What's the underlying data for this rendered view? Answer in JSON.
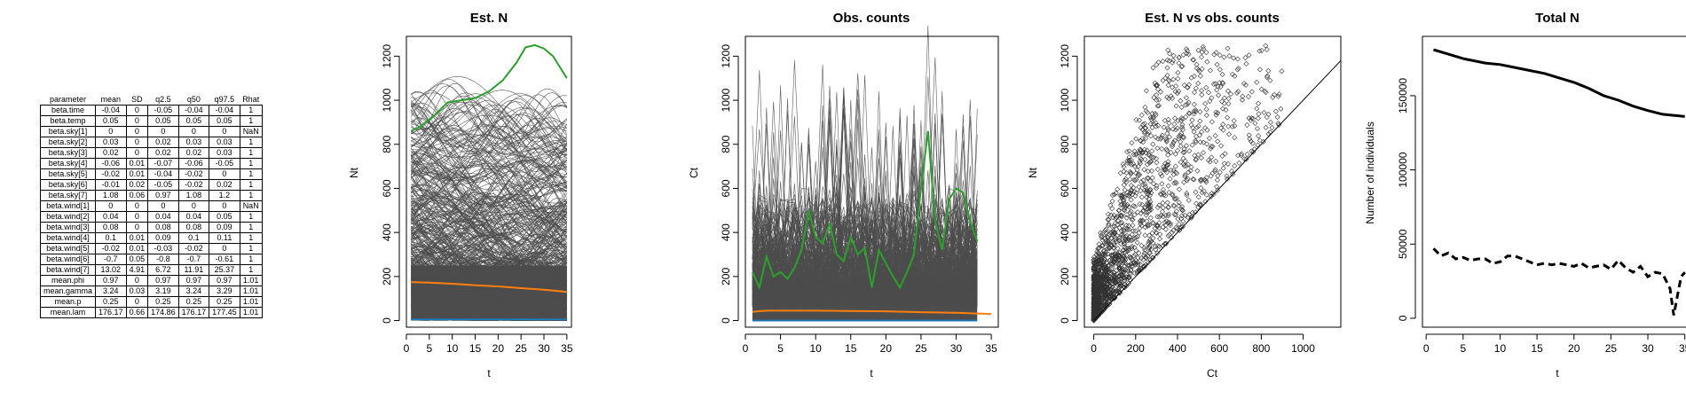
{
  "summary_table": {
    "columns": [
      "parameter",
      "mean",
      "SD",
      "q2.5",
      "q50",
      "q97.5",
      "Rhat"
    ],
    "rows": [
      [
        "beta.time",
        "-0.04",
        "0",
        "-0.05",
        "-0.04",
        "-0.04",
        "1"
      ],
      [
        "beta.temp",
        "0.05",
        "0",
        "0.05",
        "0.05",
        "0.05",
        "1"
      ],
      [
        "beta.sky[1]",
        "0",
        "0",
        "0",
        "0",
        "0",
        "NaN"
      ],
      [
        "beta.sky[2]",
        "0.03",
        "0",
        "0.02",
        "0.03",
        "0.03",
        "1"
      ],
      [
        "beta.sky[3]",
        "0.02",
        "0",
        "0.02",
        "0.02",
        "0.03",
        "1"
      ],
      [
        "beta.sky[4]",
        "-0.06",
        "0.01",
        "-0.07",
        "-0.06",
        "-0.05",
        "1"
      ],
      [
        "beta.sky[5]",
        "-0.02",
        "0.01",
        "-0.04",
        "-0.02",
        "0",
        "1"
      ],
      [
        "beta.sky[6]",
        "-0.01",
        "0.02",
        "-0.05",
        "-0.02",
        "0.02",
        "1"
      ],
      [
        "beta.sky[7]",
        "1.08",
        "0.06",
        "0.97",
        "1.08",
        "1.2",
        "1"
      ],
      [
        "beta.wind[1]",
        "0",
        "0",
        "0",
        "0",
        "0",
        "NaN"
      ],
      [
        "beta.wind[2]",
        "0.04",
        "0",
        "0.04",
        "0.04",
        "0.05",
        "1"
      ],
      [
        "beta.wind[3]",
        "0.08",
        "0",
        "0.08",
        "0.08",
        "0.09",
        "1"
      ],
      [
        "beta.wind[4]",
        "0.1",
        "0.01",
        "0.09",
        "0.1",
        "0.11",
        "1"
      ],
      [
        "beta.wind[5]",
        "-0.02",
        "0.01",
        "-0.03",
        "-0.02",
        "0",
        "1"
      ],
      [
        "beta.wind[6]",
        "-0.7",
        "0.05",
        "-0.8",
        "-0.7",
        "-0.61",
        "1"
      ],
      [
        "beta.wind[7]",
        "13.02",
        "4.91",
        "6.72",
        "11.91",
        "25.37",
        "1"
      ],
      [
        "mean.phi",
        "0.97",
        "0",
        "0.97",
        "0.97",
        "0.97",
        "1.01"
      ],
      [
        "mean.gamma",
        "3.24",
        "0.03",
        "3.19",
        "3.24",
        "3.29",
        "1.01"
      ],
      [
        "mean.p",
        "0.25",
        "0",
        "0.25",
        "0.25",
        "0.25",
        "1.01"
      ],
      [
        "mean.lam",
        "176.17",
        "0.66",
        "174.86",
        "176.17",
        "177.45",
        "1.01"
      ]
    ]
  },
  "colors": {
    "trajectories": "#4d4d4d",
    "highlight": "#2ca02c",
    "mean": "#ff7f0e",
    "minimum": "#1f77b4",
    "total": "#000000"
  },
  "chart_data": [
    {
      "type": "line",
      "title": "Est. N",
      "xlabel": "t",
      "ylabel": "Nt",
      "xlim": [
        0,
        36
      ],
      "ylim": [
        -30,
        1290
      ],
      "xticks": [
        "0",
        "5",
        "10",
        "15",
        "20",
        "25",
        "30",
        "35"
      ],
      "yticks": [
        "0",
        "200",
        "400",
        "600",
        "800",
        "1000",
        "1200"
      ],
      "n_trajectories": 400,
      "trajectory_band_0_to": 250,
      "highlighted_series": {
        "x": [
          1,
          3,
          6,
          9,
          12,
          15,
          18,
          21,
          24,
          26,
          28,
          30,
          32,
          35
        ],
        "y": [
          860,
          880,
          930,
          990,
          1000,
          1010,
          1040,
          1090,
          1170,
          1240,
          1250,
          1235,
          1200,
          1100
        ]
      },
      "mean_series": {
        "x": [
          1,
          5,
          10,
          15,
          20,
          25,
          30,
          35
        ],
        "y": [
          175,
          172,
          167,
          160,
          155,
          147,
          140,
          130
        ]
      },
      "min_series": {
        "x": [
          1,
          35
        ],
        "y": [
          5,
          5
        ]
      }
    },
    {
      "type": "line",
      "title": "Obs. counts",
      "xlabel": "t",
      "ylabel": "Ct",
      "xlim": [
        0,
        36
      ],
      "ylim": [
        -30,
        1290
      ],
      "xticks": [
        "0",
        "5",
        "10",
        "15",
        "20",
        "25",
        "30",
        "35"
      ],
      "yticks": [
        "0",
        "200",
        "400",
        "600",
        "800",
        "1000",
        "1200"
      ],
      "n_trajectories": 400,
      "trajectory_band_0_to": 150,
      "highlighted_series": {
        "x": [
          1,
          2,
          3,
          4,
          5,
          6,
          7,
          8,
          9,
          10,
          11,
          12,
          13,
          14,
          15,
          16,
          17,
          18,
          19,
          20,
          21,
          22,
          23,
          24,
          25,
          26,
          27,
          28,
          29,
          30,
          31,
          32,
          33
        ],
        "y": [
          220,
          150,
          290,
          200,
          220,
          190,
          240,
          320,
          500,
          380,
          350,
          440,
          300,
          270,
          380,
          300,
          330,
          150,
          320,
          260,
          200,
          150,
          220,
          300,
          600,
          860,
          450,
          320,
          550,
          600,
          580,
          450,
          360
        ]
      },
      "mean_series": {
        "x": [
          1,
          3,
          10,
          20,
          25,
          30,
          33,
          35
        ],
        "y": [
          40,
          45,
          45,
          42,
          38,
          35,
          32,
          30
        ]
      },
      "min_series": {
        "x": [
          1,
          33
        ],
        "y": [
          0,
          0
        ]
      }
    },
    {
      "type": "scatter",
      "title": "Est. N vs obs. counts",
      "xlabel": "Ct",
      "ylabel": "Nt",
      "xlim": [
        -45,
        1180
      ],
      "ylim": [
        -30,
        1290
      ],
      "xticks": [
        "0",
        "200",
        "400",
        "600",
        "800",
        "1000"
      ],
      "yticks": [
        "0",
        "200",
        "400",
        "600",
        "800",
        "1000",
        "1200"
      ],
      "n_points": 2200,
      "identity_line": true
    },
    {
      "type": "line",
      "title": "Total N",
      "xlabel": "t",
      "ylabel": "Number of individuals",
      "xlim": [
        -0.5,
        36
      ],
      "ylim": [
        -6000,
        190000
      ],
      "xticks": [
        "0",
        "5",
        "10",
        "15",
        "20",
        "25",
        "30",
        "35"
      ],
      "yticks": [
        "0",
        "50000",
        "100000",
        "150000"
      ],
      "series": [
        {
          "name": "",
          "style": "solid",
          "x": [
            1,
            3,
            5,
            8,
            10,
            12,
            14,
            16,
            18,
            20,
            22,
            24,
            26,
            28,
            30,
            32,
            33,
            34,
            35
          ],
          "y": [
            181000,
            178000,
            175000,
            172000,
            171000,
            169000,
            167000,
            165000,
            162000,
            159000,
            155000,
            150000,
            147000,
            143000,
            140000,
            137500,
            137000,
            136500,
            136000
          ]
        },
        {
          "name": "",
          "style": "dashed",
          "x": [
            1,
            2,
            3,
            4,
            5,
            6,
            7,
            8,
            9,
            10,
            11,
            12,
            13,
            14,
            15,
            16,
            17,
            18,
            19,
            20,
            21,
            22,
            23,
            24,
            25,
            26,
            27,
            28,
            29,
            30,
            31,
            32,
            33,
            33.5,
            34,
            34.5,
            35
          ],
          "y": [
            47000,
            42000,
            44000,
            40000,
            41000,
            39000,
            40000,
            40000,
            37000,
            38000,
            42000,
            42000,
            40000,
            38000,
            36000,
            37000,
            36000,
            37000,
            36000,
            35000,
            37000,
            34000,
            35000,
            36000,
            33000,
            39000,
            34000,
            31000,
            35000,
            28000,
            31000,
            30000,
            20000,
            2000,
            15000,
            28000,
            31000
          ]
        }
      ]
    }
  ]
}
